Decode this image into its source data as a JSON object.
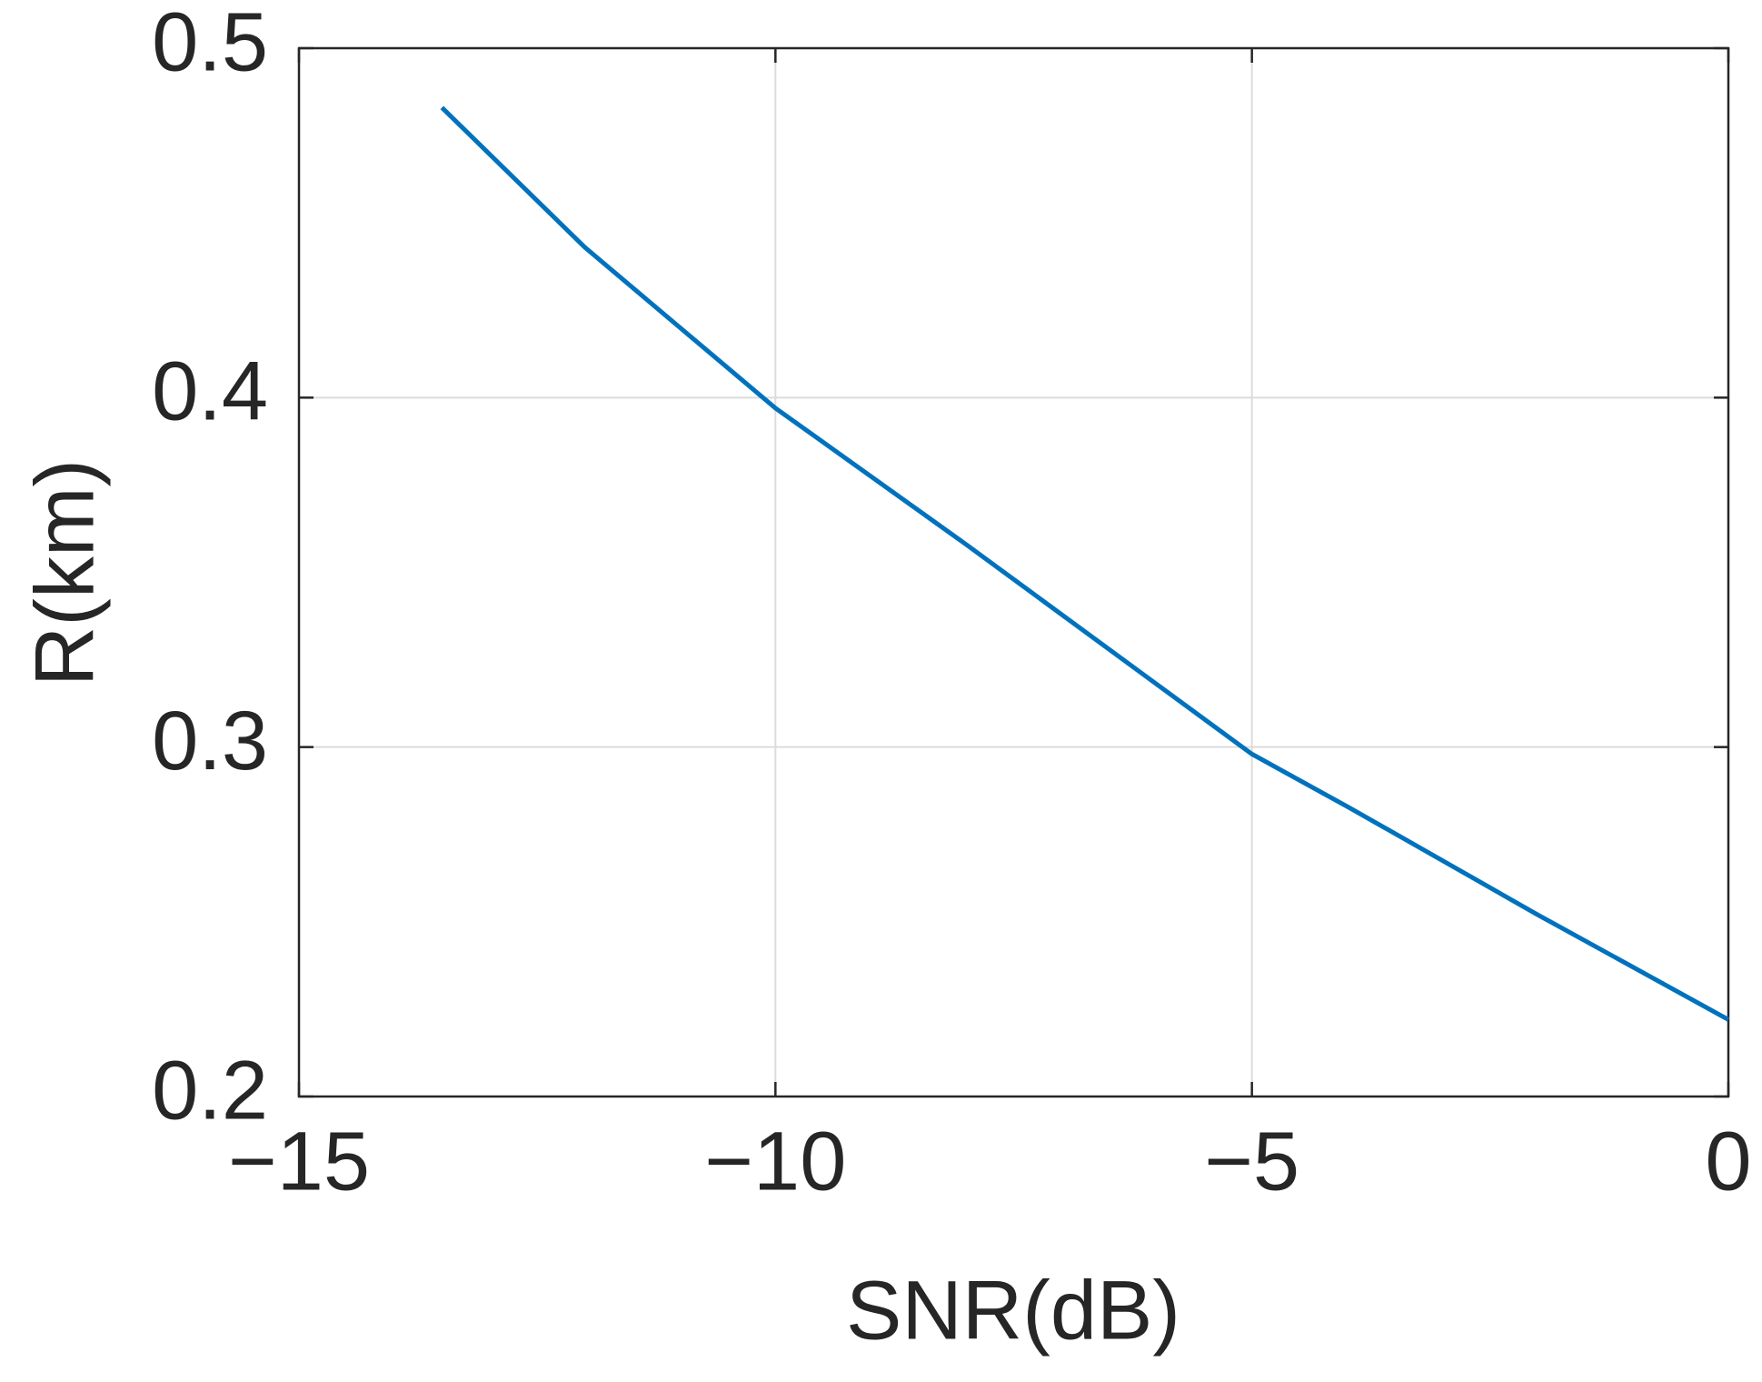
{
  "chart_data": {
    "type": "line",
    "xlabel": "SNR(dB)",
    "ylabel": "R(km)",
    "x": [
      -13.5,
      -12,
      -10,
      -8,
      -6,
      -5,
      -4,
      -2,
      0
    ],
    "series": [
      {
        "color": "#0072bd",
        "values": [
          0.483,
          0.443,
          0.397,
          0.358,
          0.318,
          0.298,
          0.283,
          0.252,
          0.222
        ]
      }
    ],
    "xlim": [
      -15,
      0
    ],
    "xticks": [
      {
        "value": -15,
        "label": "−15"
      },
      {
        "value": -10,
        "label": "−10"
      },
      {
        "value": -5,
        "label": "−5"
      },
      0
    ],
    "ylim": [
      0.2,
      0.5
    ],
    "yticks": [
      0.2,
      0.3,
      0.4,
      0.5
    ],
    "grid": true
  }
}
